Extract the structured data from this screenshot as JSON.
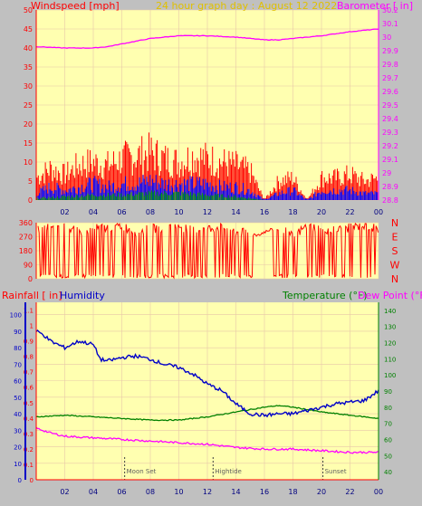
{
  "title": "24 hour graph day : August 12 2022",
  "colors": {
    "background": "#c0c0c0",
    "plot_bg": "#ffffb0",
    "wind": "#ff0000",
    "gust_base": "#0000ff",
    "barometer": "#ff00ff",
    "humidity": "#0000c8",
    "temperature": "#008000",
    "dewpoint": "#ff00ff",
    "rain": "#ff0000",
    "title": "#e0c000",
    "grid": "#e8c8a8"
  },
  "panels": {
    "wind": {
      "left_label": "Windspeed [mph]",
      "right_label": "Barometer [ in]",
      "left_ticks": [
        "0",
        "5",
        "10",
        "15",
        "20",
        "25",
        "30",
        "35",
        "40",
        "45",
        "50"
      ],
      "right_ticks": [
        "28.8",
        "28.9",
        "29",
        "29.1",
        "29.2",
        "29.3",
        "29.4",
        "29.5",
        "29.6",
        "29.7",
        "29.8",
        "29.9",
        "30",
        "30.1",
        "30.2"
      ],
      "x_ticks": [
        "02",
        "04",
        "06",
        "08",
        "10",
        "12",
        "14",
        "16",
        "18",
        "20",
        "22",
        "00"
      ]
    },
    "direction": {
      "left_ticks": [
        "0",
        "90",
        "180",
        "270",
        "360"
      ],
      "right_labels": [
        "N",
        "W",
        "S",
        "E",
        "N"
      ]
    },
    "temp": {
      "left_label": "Rainfall [ in]",
      "left_label2": "Humidity",
      "right_label": "Temperature (°F)",
      "right_label2": "Dew Point (°F)",
      "rain_ticks": [
        "0",
        "0.1",
        "0.2",
        "0.3",
        "0.4",
        "0.5",
        "0.6",
        "0.7",
        "0.8",
        "0.9",
        "1",
        "1.1"
      ],
      "hum_ticks": [
        "0",
        "10",
        "20",
        "30",
        "40",
        "50",
        "60",
        "70",
        "80",
        "90",
        "100"
      ],
      "right_ticks": [
        "40",
        "50",
        "60",
        "70",
        "80",
        "90",
        "100",
        "110",
        "120",
        "130",
        "140"
      ],
      "x_ticks": [
        "02",
        "04",
        "06",
        "08",
        "10",
        "12",
        "14",
        "16",
        "18",
        "20",
        "22",
        "00"
      ],
      "events": [
        {
          "label": "Moon Set",
          "hour": 6.2
        },
        {
          "label": "Hightide",
          "hour": 12.4
        },
        {
          "label": "Sunset",
          "hour": 20.1
        }
      ]
    }
  },
  "chart_data": [
    {
      "type": "line",
      "title": "24 hour graph day : August 12 2022",
      "ylabel": "Windspeed [mph]",
      "y2label": "Barometer [ in]",
      "ylim": [
        0,
        50
      ],
      "y2lim": [
        28.8,
        30.2
      ],
      "xlim": [
        0,
        24
      ],
      "series": [
        {
          "name": "Barometer",
          "axis": "right",
          "x": [
            0,
            2,
            4,
            5,
            6,
            8,
            10,
            12,
            14,
            15,
            16,
            17,
            18,
            20,
            22,
            23,
            24
          ],
          "values": [
            29.93,
            29.92,
            29.92,
            29.93,
            29.95,
            29.99,
            30.01,
            30.01,
            30.0,
            29.99,
            29.98,
            29.98,
            29.99,
            30.01,
            30.04,
            30.05,
            30.06
          ]
        },
        {
          "name": "Wind gust",
          "axis": "left",
          "x": [
            0,
            1,
            2,
            3,
            4,
            5,
            6,
            7,
            8,
            9,
            10,
            11,
            12,
            13,
            14,
            15,
            16,
            17,
            18,
            19,
            20,
            21,
            22,
            23,
            24
          ],
          "values": [
            7,
            10,
            8,
            11,
            12,
            11,
            13,
            14,
            15,
            13,
            12,
            14,
            13,
            12,
            11,
            9,
            0,
            6,
            7,
            0,
            7,
            7,
            8,
            6,
            7
          ]
        },
        {
          "name": "Wind speed",
          "axis": "left",
          "x": [
            0,
            1,
            2,
            3,
            4,
            5,
            6,
            7,
            8,
            9,
            10,
            11,
            12,
            13,
            14,
            15,
            16,
            17,
            18,
            19,
            20,
            21,
            22,
            23,
            24
          ],
          "values": [
            2,
            4,
            3,
            4,
            5,
            4,
            5,
            5,
            6,
            5,
            5,
            5,
            5,
            4,
            4,
            3,
            0,
            2,
            3,
            0,
            3,
            3,
            3,
            2,
            2
          ]
        },
        {
          "name": "Wind low",
          "axis": "left",
          "x": [
            0,
            2,
            4,
            6,
            8,
            10,
            12,
            14,
            15,
            16,
            24
          ],
          "values": [
            0.5,
            1,
            1.5,
            1.5,
            2,
            2,
            1.5,
            1,
            0.5,
            0,
            0
          ]
        }
      ]
    },
    {
      "type": "line",
      "ylim": [
        0,
        360
      ],
      "xlim": [
        0,
        24
      ],
      "series": [
        {
          "name": "Wind direction",
          "x": [
            0,
            1,
            2,
            3,
            4,
            5,
            6,
            7,
            8,
            9,
            10,
            11,
            12,
            13,
            14,
            15,
            15.5,
            16,
            17,
            18,
            19,
            20,
            21,
            22,
            23,
            24
          ],
          "values": [
            310,
            340,
            330,
            300,
            320,
            330,
            340,
            300,
            320,
            330,
            340,
            310,
            320,
            330,
            300,
            290,
            280,
            300,
            330,
            270,
            340,
            320,
            310,
            330,
            340,
            320
          ]
        }
      ]
    },
    {
      "type": "line",
      "xlim": [
        0,
        24
      ],
      "series": [
        {
          "name": "Humidity",
          "axis": "humidity",
          "ylim": [
            0,
            100
          ],
          "x": [
            0,
            0.5,
            1,
            2,
            3,
            4,
            4.5,
            5,
            6,
            7,
            8,
            9,
            10,
            11,
            12,
            13,
            14,
            15,
            16,
            17,
            18,
            19,
            20,
            21,
            22,
            23,
            24
          ],
          "values": [
            90,
            88,
            84,
            80,
            84,
            82,
            73,
            72,
            74,
            75,
            73,
            70,
            68,
            64,
            58,
            54,
            46,
            40,
            39,
            40,
            40,
            42,
            44,
            46,
            47,
            48,
            54
          ]
        },
        {
          "name": "Temperature",
          "axis": "right",
          "ylim": [
            35,
            145
          ],
          "x": [
            0,
            2,
            4,
            6,
            8,
            10,
            12,
            14,
            16,
            17,
            18,
            20,
            22,
            24
          ],
          "values": [
            74,
            75,
            74,
            73,
            72,
            72,
            74,
            77,
            80,
            81,
            80,
            77,
            75,
            73
          ]
        },
        {
          "name": "Dew Point",
          "axis": "right",
          "ylim": [
            35,
            145
          ],
          "x": [
            0,
            1,
            2,
            4,
            6,
            8,
            10,
            12,
            14,
            16,
            18,
            20,
            22,
            24
          ],
          "values": [
            67,
            64,
            62,
            61,
            60,
            59,
            58,
            57,
            55,
            54,
            54,
            53,
            52,
            52
          ]
        },
        {
          "name": "Rainfall",
          "axis": "rain",
          "ylim": [
            0,
            1.15
          ],
          "x": [
            0,
            24
          ],
          "values": [
            0,
            0
          ]
        }
      ]
    }
  ]
}
